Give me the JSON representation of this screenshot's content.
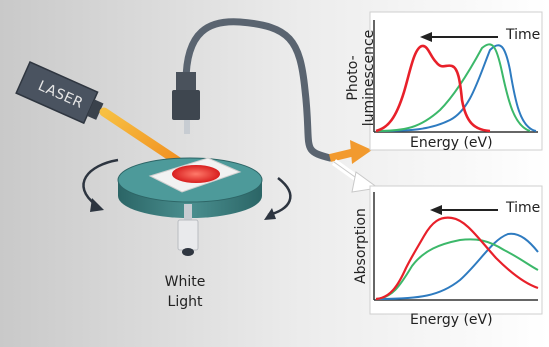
{
  "apparatus": {
    "laser_label": "LASER",
    "white_light_label": "White\nLight"
  },
  "panels": {
    "photoluminescence": {
      "ylabel_line1": "Photo-",
      "ylabel_line2": "luminescence",
      "xlabel": "Energy (eV)",
      "arrow_label": "Time"
    },
    "absorption": {
      "ylabel": "Absorption",
      "xlabel": "Energy (eV)",
      "arrow_label": "Time"
    }
  },
  "colors": {
    "red": "#e8202a",
    "green": "#3cb86a",
    "blue": "#2e7bc0",
    "laser_beam": "#f5a623",
    "arrow_orange": "#f29a2e",
    "stage_teal": "#3d7c7c",
    "fiber": "#5a6470"
  }
}
